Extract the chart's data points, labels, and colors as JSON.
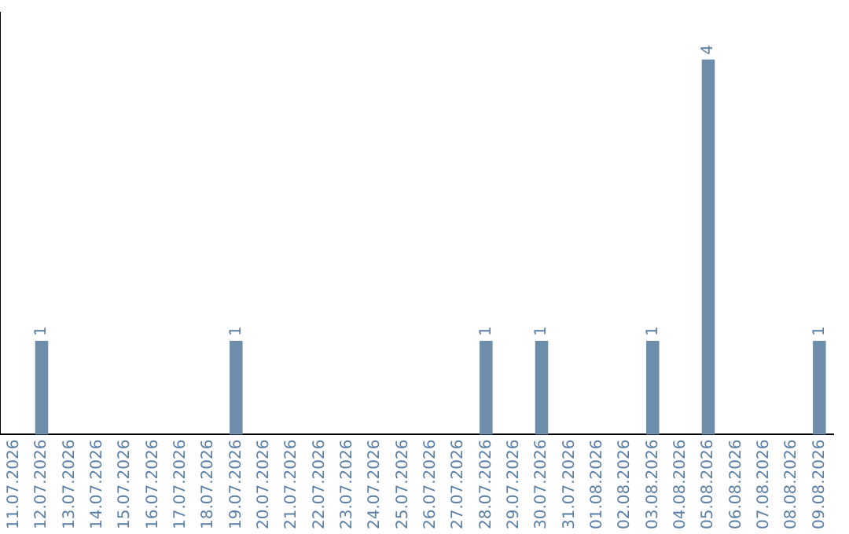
{
  "chart_data": {
    "type": "bar",
    "categories": [
      "11.07.2026",
      "12.07.2026",
      "13.07.2026",
      "14.07.2026",
      "15.07.2026",
      "16.07.2026",
      "17.07.2026",
      "18.07.2026",
      "19.07.2026",
      "20.07.2026",
      "21.07.2026",
      "22.07.2026",
      "23.07.2026",
      "24.07.2026",
      "25.07.2026",
      "26.07.2026",
      "27.07.2026",
      "28.07.2026",
      "29.07.2026",
      "30.07.2026",
      "31.07.2026",
      "01.08.2026",
      "02.08.2026",
      "03.08.2026",
      "04.08.2026",
      "05.08.2026",
      "06.08.2026",
      "07.08.2026",
      "08.08.2026",
      "09.08.2026"
    ],
    "values": [
      null,
      1,
      null,
      null,
      null,
      null,
      null,
      null,
      1,
      null,
      null,
      null,
      null,
      null,
      null,
      null,
      null,
      1,
      null,
      1,
      null,
      null,
      null,
      1,
      null,
      4,
      null,
      null,
      null,
      1
    ],
    "color": "#6e8dab",
    "data_labels": true,
    "grid": false,
    "legend": false
  }
}
